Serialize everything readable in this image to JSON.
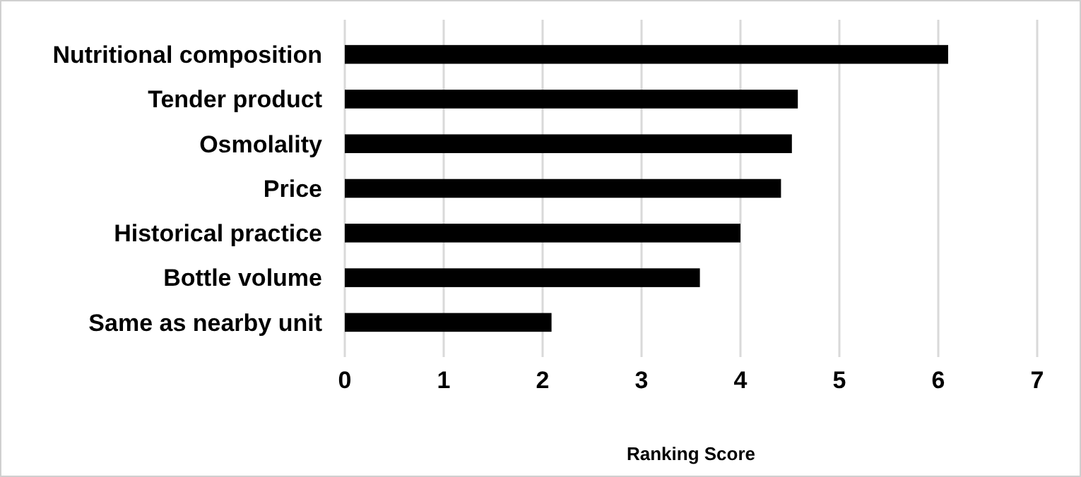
{
  "chart_data": {
    "type": "bar",
    "orientation": "horizontal",
    "xlabel": "Ranking Score",
    "categories": [
      "Nutritional composition",
      "Tender product",
      "Osmolality",
      "Price",
      "Historical practice",
      "Bottle volume",
      "Same as nearby unit"
    ],
    "values": [
      6.1,
      4.58,
      4.52,
      4.41,
      4.0,
      3.59,
      2.09
    ],
    "color": "#000000",
    "xlim": [
      0,
      7
    ],
    "xticks": [
      0,
      1,
      2,
      3,
      4,
      5,
      6,
      7
    ],
    "grid": "x"
  }
}
